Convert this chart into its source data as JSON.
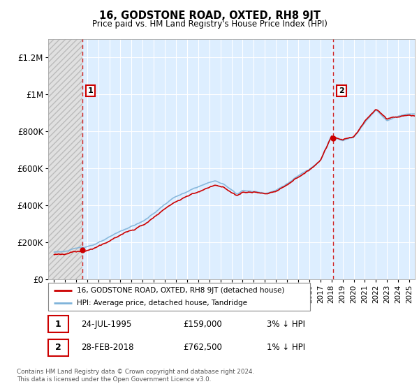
{
  "title": "16, GODSTONE ROAD, OXTED, RH8 9JT",
  "subtitle": "Price paid vs. HM Land Registry's House Price Index (HPI)",
  "legend_line1": "16, GODSTONE ROAD, OXTED, RH8 9JT (detached house)",
  "legend_line2": "HPI: Average price, detached house, Tandridge",
  "annotation1_label": "1",
  "annotation1_date": "24-JUL-1995",
  "annotation1_price": "£159,000",
  "annotation1_hpi": "3% ↓ HPI",
  "annotation2_label": "2",
  "annotation2_date": "28-FEB-2018",
  "annotation2_price": "£762,500",
  "annotation2_hpi": "1% ↓ HPI",
  "footer": "Contains HM Land Registry data © Crown copyright and database right 2024.\nThis data is licensed under the Open Government Licence v3.0.",
  "sale1_x": 1995.56,
  "sale1_y": 159000,
  "sale2_x": 2018.16,
  "sale2_y": 762500,
  "price_color": "#cc0000",
  "hpi_color": "#7fb3d9",
  "plot_bg_color": "#ddeeff",
  "hatch_bg_color": "#e8e8e8",
  "grid_color": "#ffffff",
  "ylim": [
    0,
    1300000
  ],
  "xlim": [
    1992.5,
    2025.5
  ],
  "yticks": [
    0,
    200000,
    400000,
    600000,
    800000,
    1000000,
    1200000
  ],
  "ylabels": [
    "£0",
    "£200K",
    "£400K",
    "£600K",
    "£800K",
    "£1M",
    "£1.2M"
  ]
}
